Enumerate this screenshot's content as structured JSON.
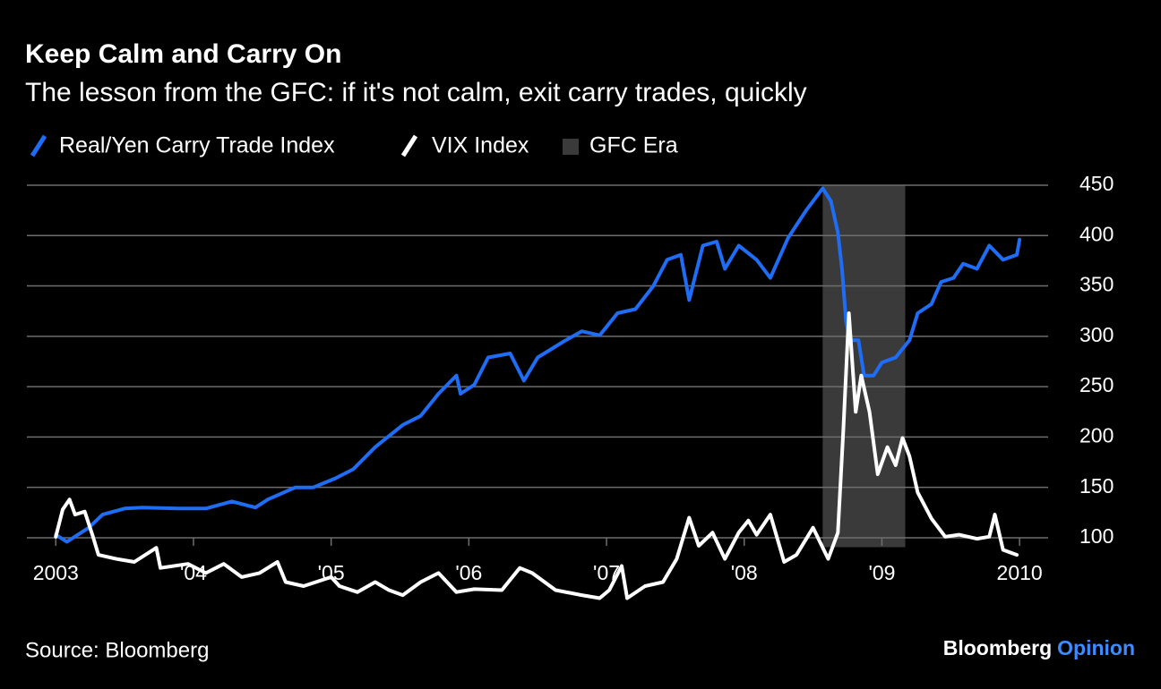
{
  "chart_data": {
    "type": "line",
    "title": "Keep Calm and Carry On",
    "subtitle": "The lesson from the GFC: if it's not calm, exit carry trades, quickly",
    "source": "Source: Bloomberg",
    "brand": "Bloomberg",
    "brand_suffix": "Opinion",
    "xlim": [
      2002.79,
      2010.37
    ],
    "xticks": [
      {
        "value": 2003,
        "label": "2003"
      },
      {
        "value": 2004,
        "label": "'04"
      },
      {
        "value": 2005,
        "label": "'05"
      },
      {
        "value": 2006,
        "label": "'06"
      },
      {
        "value": 2007,
        "label": "'07"
      },
      {
        "value": 2008,
        "label": "'08"
      },
      {
        "value": 2009,
        "label": "'09"
      },
      {
        "value": 2010,
        "label": "2010"
      }
    ],
    "ylim": [
      40,
      450
    ],
    "yticks": [
      100,
      150,
      200,
      250,
      300,
      350,
      400,
      450
    ],
    "grid": true,
    "shade": {
      "name": "GFC Era",
      "color": "#3a3a3a",
      "start": 2008.57,
      "end": 2009.17
    },
    "series": [
      {
        "name": "Real/Yen Carry Trade Index",
        "color": "#1f6cf5",
        "x": [
          2003.0,
          2003.08,
          2003.24,
          2003.34,
          2003.5,
          2003.63,
          2003.89,
          2004.09,
          2004.28,
          2004.45,
          2004.54,
          2004.74,
          2004.87,
          2005.03,
          2005.16,
          2005.32,
          2005.52,
          2005.65,
          2005.78,
          2005.91,
          2005.94,
          2006.04,
          2006.14,
          2006.3,
          2006.4,
          2006.5,
          2006.69,
          2006.82,
          2006.95,
          2007.08,
          2007.21,
          2007.34,
          2007.44,
          2007.54,
          2007.6,
          2007.7,
          2007.8,
          2007.86,
          2007.96,
          2008.09,
          2008.19,
          2008.32,
          2008.45,
          2008.57,
          2008.63,
          2008.68,
          2008.71,
          2008.74,
          2008.77,
          2008.83,
          2008.87,
          2008.94,
          2009.0,
          2009.1,
          2009.2,
          2009.26,
          2009.36,
          2009.43,
          2009.52,
          2009.59,
          2009.69,
          2009.78,
          2009.88,
          2009.98,
          2010.0
        ],
        "values": [
          103,
          96,
          110,
          123,
          129,
          130,
          129,
          129,
          136,
          130,
          138,
          150,
          150,
          159,
          168,
          190,
          212,
          221,
          243,
          261,
          243,
          252,
          279,
          283,
          256,
          279,
          295,
          305,
          301,
          323,
          327,
          350,
          376,
          381,
          336,
          390,
          394,
          367,
          390,
          376,
          358,
          398,
          425,
          447,
          434,
          403,
          367,
          314,
          296,
          296,
          261,
          261,
          274,
          279,
          296,
          323,
          332,
          354,
          358,
          372,
          367,
          390,
          376,
          381,
          396
        ]
      },
      {
        "name": "VIX Index",
        "color": "#ffffff",
        "x": [
          2003.0,
          2003.05,
          2003.1,
          2003.14,
          2003.21,
          2003.27,
          2003.31,
          2003.44,
          2003.57,
          2003.73,
          2003.76,
          2003.96,
          2004.09,
          2004.22,
          2004.35,
          2004.48,
          2004.61,
          2004.67,
          2004.8,
          2005.0,
          2005.06,
          2005.19,
          2005.32,
          2005.42,
          2005.52,
          2005.65,
          2005.78,
          2005.91,
          2006.04,
          2006.24,
          2006.37,
          2006.46,
          2006.63,
          2006.82,
          2006.95,
          2007.02,
          2007.11,
          2007.15,
          2007.28,
          2007.41,
          2007.51,
          2007.6,
          2007.67,
          2007.77,
          2007.86,
          2007.96,
          2008.03,
          2008.09,
          2008.19,
          2008.29,
          2008.38,
          2008.5,
          2008.61,
          2008.68,
          2008.72,
          2008.76,
          2008.81,
          2008.85,
          2008.91,
          2008.97,
          2009.04,
          2009.1,
          2009.15,
          2009.2,
          2009.26,
          2009.36,
          2009.46,
          2009.56,
          2009.69,
          2009.78,
          2009.82,
          2009.88,
          2009.98
        ],
        "values": [
          101,
          128,
          138,
          123,
          126,
          101,
          83,
          79,
          76,
          90,
          70,
          74,
          65,
          74,
          61,
          65,
          76,
          56,
          52,
          61,
          52,
          46,
          56,
          48,
          43,
          56,
          65,
          46,
          49,
          48,
          70,
          65,
          48,
          43,
          40,
          48,
          72,
          40,
          52,
          56,
          79,
          120,
          92,
          105,
          79,
          105,
          117,
          103,
          123,
          76,
          83,
          110,
          79,
          105,
          207,
          323,
          225,
          261,
          225,
          163,
          190,
          172,
          199,
          181,
          145,
          119,
          101,
          103,
          99,
          101,
          123,
          88,
          83
        ]
      }
    ]
  }
}
